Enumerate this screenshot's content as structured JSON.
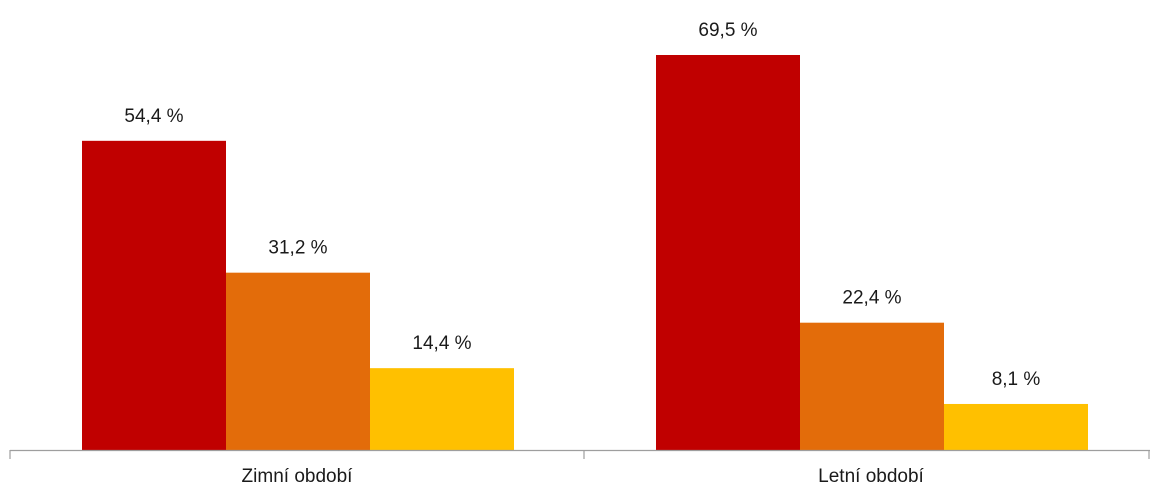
{
  "chart_data": {
    "type": "bar",
    "categories": [
      "Zimní období",
      "Letní období"
    ],
    "series": [
      {
        "values": [
          54.4,
          69.5
        ],
        "labels": [
          "54,4 %",
          "69,5 %"
        ],
        "color": "#c00000"
      },
      {
        "values": [
          31.2,
          22.4
        ],
        "labels": [
          "31,2 %",
          "22,4 %"
        ],
        "color": "#e36c0a"
      },
      {
        "values": [
          14.4,
          8.1
        ],
        "labels": [
          "14,4 %",
          "8,1 %"
        ],
        "color": "#ffc000"
      }
    ],
    "ylim": [
      0,
      75
    ],
    "grid": false,
    "legend": "none"
  }
}
